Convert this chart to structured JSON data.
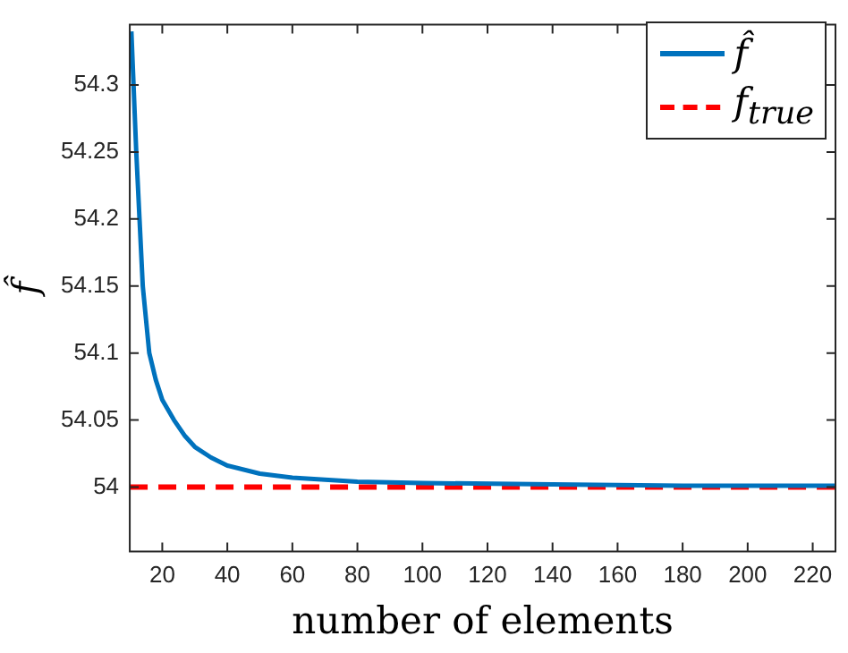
{
  "chart_data": {
    "type": "line",
    "xlabel": "number of elements",
    "ylabel": "f̂",
    "xlim": [
      10,
      227
    ],
    "xticks": [
      20,
      40,
      60,
      80,
      100,
      120,
      140,
      160,
      180,
      200,
      220
    ],
    "ylim": [
      53.952,
      54.345
    ],
    "yticks": [
      54,
      54.05,
      54.1,
      54.15,
      54.2,
      54.25,
      54.3
    ],
    "grid": false,
    "legend": "top right",
    "marker": "none",
    "series": [
      {
        "name": "f̂",
        "color": "#0072bd",
        "line_style": "solid",
        "x": [
          10.5,
          11,
          12,
          13,
          14,
          16,
          18,
          20,
          23.6,
          27,
          30,
          35,
          40,
          50,
          60,
          80,
          100,
          140,
          180,
          227
        ],
        "values": [
          54.34,
          54.31,
          54.25,
          54.2,
          54.15,
          54.1,
          54.08,
          54.065,
          54.05,
          54.038,
          54.03,
          54.022,
          54.016,
          54.01,
          54.007,
          54.004,
          54.003,
          54.002,
          54.001,
          54.001
        ]
      },
      {
        "name": "f$_{true}$",
        "color": "#ff0000",
        "line_style": "dashed",
        "x": [
          10,
          227
        ],
        "values": [
          54,
          54
        ]
      }
    ]
  }
}
